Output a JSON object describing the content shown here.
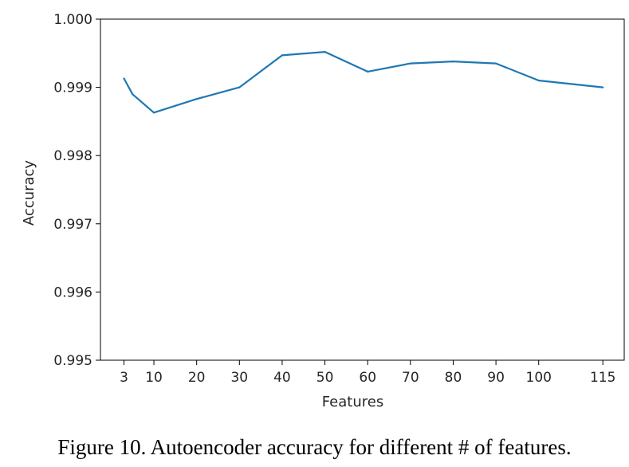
{
  "chart_data": {
    "type": "line",
    "title": "",
    "xlabel": "Features",
    "ylabel": "Accuracy",
    "x": [
      3,
      5,
      10,
      20,
      30,
      40,
      50,
      60,
      70,
      80,
      90,
      100,
      115
    ],
    "xticks": [
      3,
      10,
      20,
      30,
      40,
      50,
      60,
      70,
      80,
      90,
      100,
      115
    ],
    "xlim": [
      -2.5,
      120
    ],
    "ylim": [
      0.995,
      1.0
    ],
    "yticks": [
      "0.995",
      "0.996",
      "0.997",
      "0.998",
      "0.999",
      "1.000"
    ],
    "series": [
      {
        "values": [
          0.99913,
          0.9989,
          0.99863,
          0.99883,
          0.999,
          0.99947,
          0.99952,
          0.99923,
          0.99935,
          0.99938,
          0.99935,
          0.9991,
          0.999
        ],
        "color": "#1f77b4"
      }
    ],
    "grid": false,
    "legend": "none"
  },
  "caption": "Figure 10. Autoencoder accuracy for different # of features."
}
